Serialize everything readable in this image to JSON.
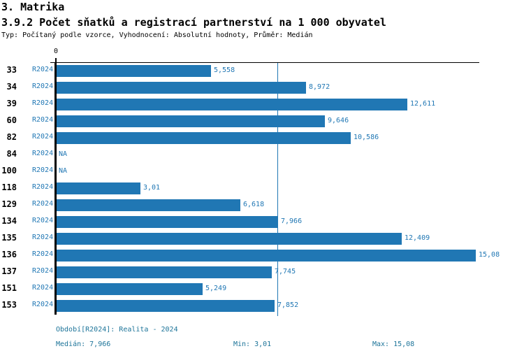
{
  "header": {
    "title_line1": "3. Matrika",
    "title_line2": "3.9.2 Počet sňatků a registrací partnerství na 1 000 obyvatel",
    "subtitle": "Typ: Počítaný podle vzorce, Vyhodnocení: Absolutní hodnoty, Průměr: Medián"
  },
  "chart_data": {
    "type": "bar",
    "orientation": "horizontal",
    "axis_zero_label": "0",
    "series_label": "R2024",
    "categories": [
      "33",
      "34",
      "39",
      "60",
      "82",
      "84",
      "100",
      "118",
      "129",
      "134",
      "135",
      "136",
      "137",
      "151",
      "153"
    ],
    "values": [
      5.558,
      8.972,
      12.611,
      9.646,
      10.586,
      null,
      null,
      3.01,
      6.618,
      7.966,
      12.409,
      15.08,
      7.745,
      5.249,
      7.852
    ],
    "value_labels": [
      "5,558",
      "8,972",
      "12,611",
      "9,646",
      "10,586",
      "NA",
      "NA",
      "3,01",
      "6,618",
      "7,966",
      "12,409",
      "15,08",
      "7,745",
      "5,249",
      "7,852"
    ],
    "xlim": [
      0,
      15.08
    ],
    "median_value": 7.966,
    "bar_color": "#2077b4",
    "median_line_color": "#2077b4",
    "legend_position": "none",
    "grid": false
  },
  "footer": {
    "period": "Období[R2024]: Realita - 2024",
    "median": "Medián: 7,966",
    "min": "Min: 3,01",
    "max": "Max: 15,08"
  }
}
